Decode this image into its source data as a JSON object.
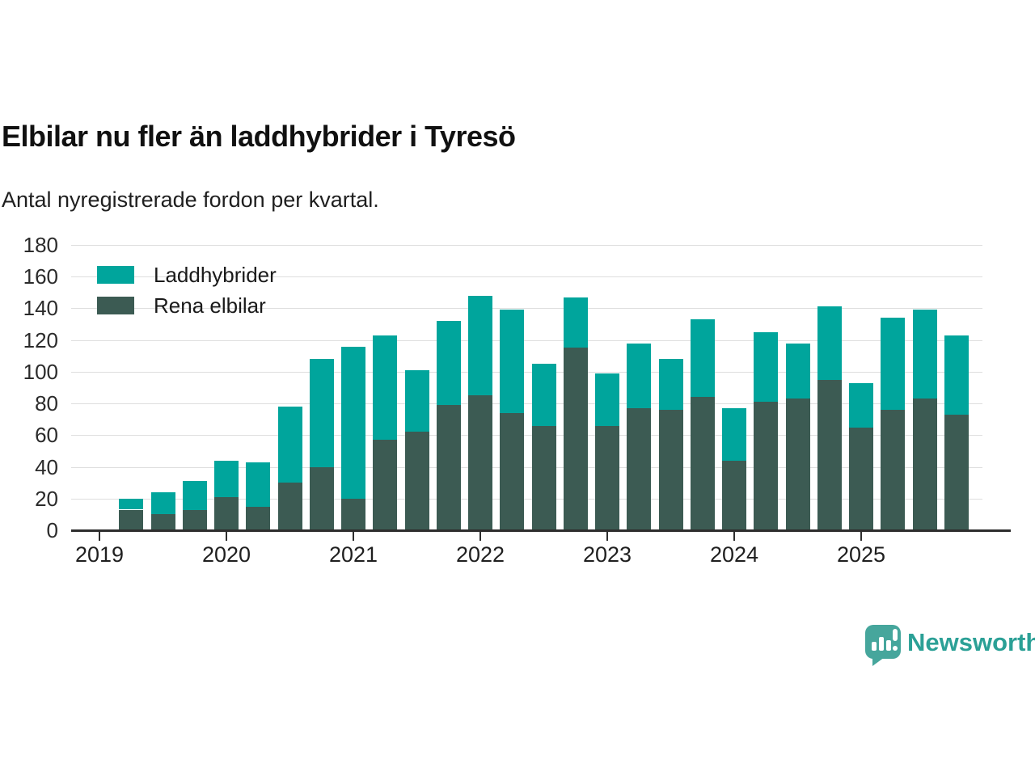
{
  "header": {
    "title": "Elbilar nu fler än laddhybrider i Tyresö",
    "subtitle": "Antal nyregistrerade fordon per kvartal."
  },
  "legend": {
    "items": [
      {
        "label": "Laddhybrider",
        "color": "#00a59c"
      },
      {
        "label": "Rena elbilar",
        "color": "#3c5b53"
      }
    ]
  },
  "footer": {
    "brand": "Newsworthy",
    "brand_text_color": "#2ba096",
    "logo_mark_color": "#46a69c"
  },
  "chart_data": {
    "type": "bar",
    "stacked": true,
    "title": "Elbilar nu fler än laddhybrider i Tyresö",
    "subtitle": "Antal nyregistrerade fordon per kvartal.",
    "x": [
      "2019-Q2",
      "2019-Q3",
      "2019-Q4",
      "2020-Q1",
      "2020-Q2",
      "2020-Q3",
      "2020-Q4",
      "2021-Q1",
      "2021-Q2",
      "2021-Q3",
      "2021-Q4",
      "2022-Q1",
      "2022-Q2",
      "2022-Q3",
      "2022-Q4",
      "2023-Q1",
      "2023-Q2",
      "2023-Q3",
      "2023-Q4",
      "2024-Q1",
      "2024-Q2",
      "2024-Q3",
      "2024-Q4",
      "2025-Q1",
      "2025-Q2",
      "2025-Q3",
      "2025-Q4"
    ],
    "series": [
      {
        "name": "Rena elbilar",
        "color": "#3c5b53",
        "stack": "bottom",
        "values": [
          13,
          10,
          13,
          21,
          15,
          30,
          40,
          20,
          57,
          62,
          79,
          85,
          74,
          66,
          115,
          66,
          77,
          76,
          84,
          44,
          81,
          83,
          95,
          65,
          76,
          83,
          73
        ]
      },
      {
        "name": "Laddhybrider",
        "color": "#00a59c",
        "stack": "top",
        "values": [
          7,
          14,
          18,
          23,
          28,
          48,
          68,
          96,
          66,
          39,
          53,
          63,
          65,
          39,
          32,
          33,
          41,
          32,
          49,
          33,
          44,
          35,
          46,
          28,
          58,
          56,
          50
        ]
      }
    ],
    "ylim": [
      0,
      180
    ],
    "yticks": [
      0,
      20,
      40,
      60,
      80,
      100,
      120,
      140,
      160,
      180
    ],
    "xticks": [
      {
        "label": "2019",
        "at": "2019-Q1"
      },
      {
        "label": "2020",
        "at": "2020-Q1"
      },
      {
        "label": "2021",
        "at": "2021-Q1"
      },
      {
        "label": "2022",
        "at": "2022-Q1"
      },
      {
        "label": "2023",
        "at": "2023-Q1"
      },
      {
        "label": "2024",
        "at": "2024-Q1"
      },
      {
        "label": "2025",
        "at": "2025-Q1"
      }
    ],
    "grid": true,
    "legend_position": "top-left"
  }
}
